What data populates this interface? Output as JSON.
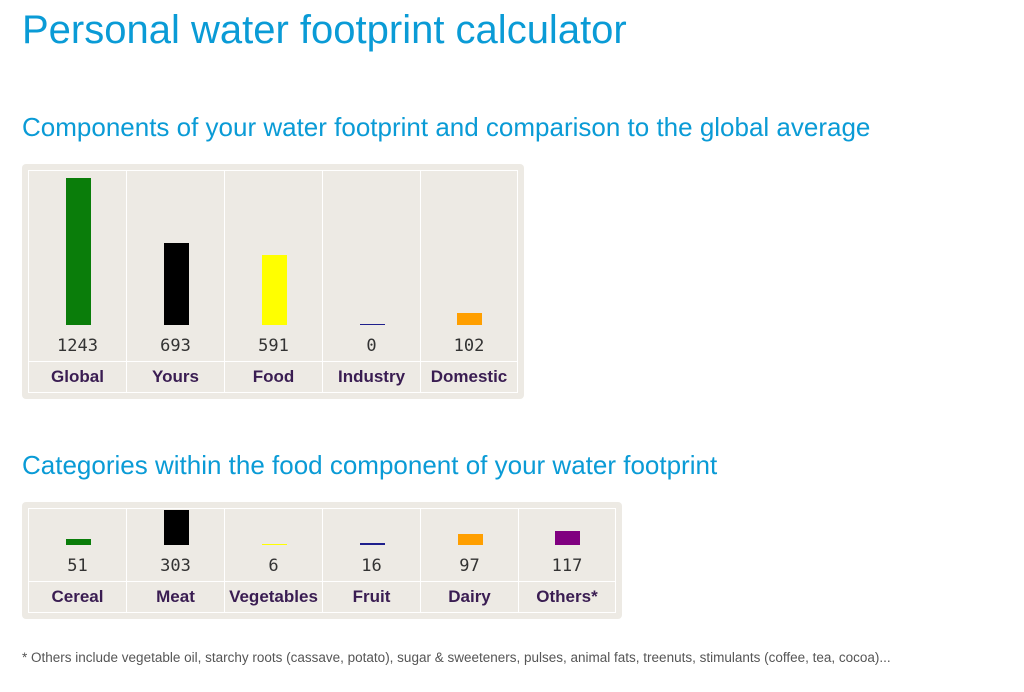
{
  "page": {
    "title": "Personal water footprint calculator"
  },
  "components": {
    "heading": "Components of your water footprint and comparison to the global average",
    "items": [
      {
        "label": "Global",
        "value": 1243,
        "color": "#0a7d0a"
      },
      {
        "label": "Yours",
        "value": 693,
        "color": "#000000"
      },
      {
        "label": "Food",
        "value": 591,
        "color": "#ffff00"
      },
      {
        "label": "Industry",
        "value": 0,
        "color": "#1f1f8c"
      },
      {
        "label": "Domestic",
        "value": 102,
        "color": "#ff9f00"
      }
    ]
  },
  "food": {
    "heading": "Categories within the food component of your water footprint",
    "items": [
      {
        "label": "Cereal",
        "value": 51,
        "color": "#0a7d0a"
      },
      {
        "label": "Meat",
        "value": 303,
        "color": "#000000"
      },
      {
        "label": "Vegetables",
        "value": 6,
        "color": "#ffff00"
      },
      {
        "label": "Fruit",
        "value": 16,
        "color": "#1f1f8c"
      },
      {
        "label": "Dairy",
        "value": 97,
        "color": "#ff9f00"
      },
      {
        "label": "Others*",
        "value": 117,
        "color": "#800080"
      }
    ]
  },
  "footnote": "* Others include vegetable oil, starchy roots (cassave, potato), sugar & sweeteners, pulses, animal fats, treenuts, stimulants (coffee, tea, cocoa)..."
}
